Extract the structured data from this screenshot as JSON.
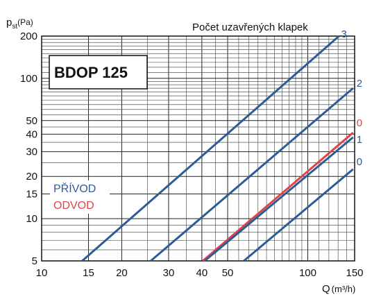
{
  "chart_data": {
    "type": "line",
    "title": "BDOP 125",
    "xlabel": "Q",
    "xlabel_unit": "(m³/h)",
    "ylabel": "p",
    "ylabel_sub": "st",
    "ylabel_unit": "(Pa)",
    "x_scale": "log",
    "y_scale": "log",
    "xlim": [
      10,
      150
    ],
    "ylim": [
      5,
      200
    ],
    "x_ticks": [
      10,
      15,
      20,
      30,
      40,
      50,
      100,
      150
    ],
    "y_ticks": [
      5,
      10,
      15,
      20,
      30,
      40,
      50,
      100,
      200
    ],
    "grid": true,
    "annotation": "Počet uzavřených klapek",
    "legend": [
      {
        "label": "PŘÍVOD",
        "color": "#2b5c96"
      },
      {
        "label": "ODVOD",
        "color": "#e0434a"
      }
    ],
    "series": [
      {
        "name": "3",
        "group": "PŘÍVOD",
        "color": "#2b5c96",
        "x": [
          14.2,
          131
        ],
        "y": [
          5,
          200
        ]
      },
      {
        "name": "2",
        "group": "PŘÍVOD",
        "color": "#2b5c96",
        "x": [
          25.7,
          148
        ],
        "y": [
          5,
          85
        ]
      },
      {
        "name": "0",
        "group": "ODVOD",
        "color": "#e0434a",
        "x": [
          40.3,
          148
        ],
        "y": [
          5,
          41
        ]
      },
      {
        "name": "1",
        "group": "PŘÍVOD",
        "color": "#2b5c96",
        "x": [
          41,
          148
        ],
        "y": [
          5,
          38
        ]
      },
      {
        "name": "0",
        "group": "PŘÍVOD",
        "color": "#2b5c96",
        "x": [
          57.5,
          148
        ],
        "y": [
          5,
          22.5
        ]
      }
    ]
  }
}
